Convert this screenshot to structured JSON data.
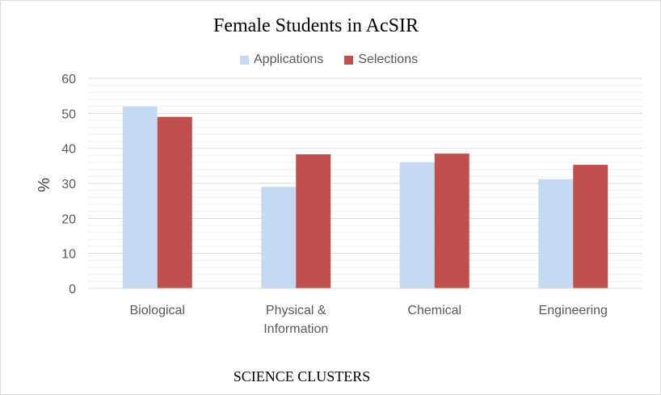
{
  "chart_data": {
    "type": "bar",
    "title": "Female Students in AcSIR",
    "xlabel": "SCIENCE CLUSTERS",
    "ylabel": "%",
    "ylim": [
      0,
      60
    ],
    "yticks": [
      0,
      10,
      20,
      30,
      40,
      50,
      60
    ],
    "grid": true,
    "legend_position": "top",
    "categories": [
      "Biological",
      "Physical & Information",
      "Chemical",
      "Engineering"
    ],
    "category_lines": [
      [
        "Biological"
      ],
      [
        "Physical &",
        "Information"
      ],
      [
        "Chemical"
      ],
      [
        "Engineering"
      ]
    ],
    "series": [
      {
        "name": "Applications",
        "color": "#c6d9f0",
        "values": [
          52,
          29,
          36,
          31.2
        ]
      },
      {
        "name": "Selections",
        "color": "#c0504d",
        "values": [
          49,
          38.3,
          38.5,
          35.3
        ]
      }
    ]
  }
}
